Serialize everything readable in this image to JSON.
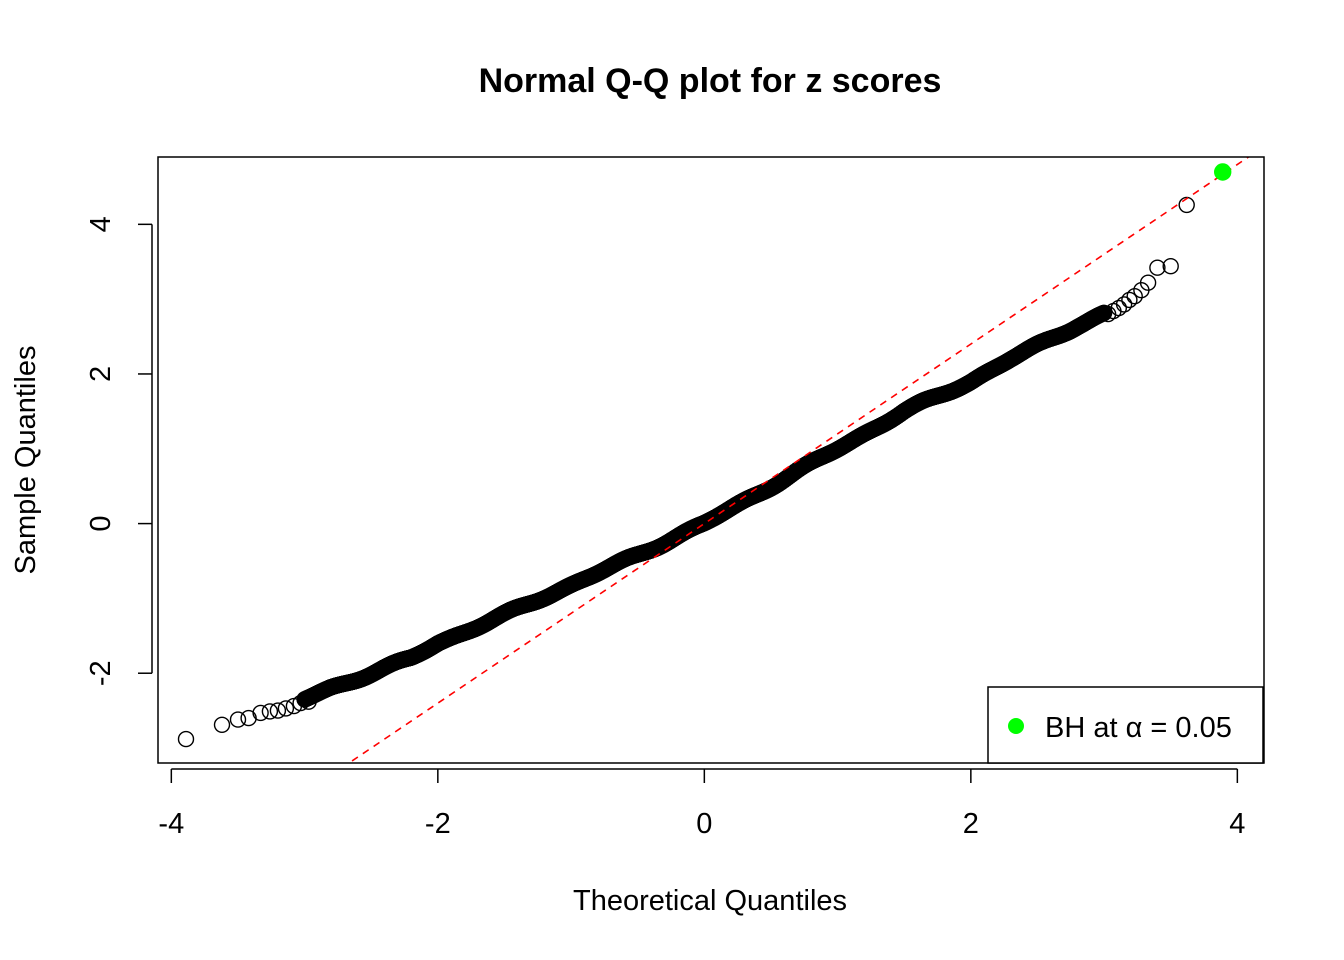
{
  "chart_data": {
    "type": "scatter",
    "title": "Normal Q-Q plot for z scores",
    "xlabel": "Theoretical Quantiles",
    "ylabel": "Sample Quantiles",
    "xlim": [
      -4.1,
      4.2
    ],
    "ylim": [
      -3.2,
      4.9
    ],
    "x_ticks": [
      -4,
      -2,
      0,
      2,
      4
    ],
    "x_tick_labels": [
      "-4",
      "-2",
      "0",
      "2",
      "4"
    ],
    "y_ticks": [
      -2,
      0,
      2,
      4
    ],
    "y_tick_labels": [
      "-2",
      "0",
      "2",
      "4"
    ],
    "grid": false,
    "reference_line": {
      "slope": 1.2,
      "intercept": 0.0,
      "color": "#ff0000",
      "style": "dashed"
    },
    "curve_knots": [
      [
        -3.0,
        -2.35
      ],
      [
        -2.8,
        -2.2
      ],
      [
        -2.5,
        -2.0
      ],
      [
        -2.2,
        -1.8
      ],
      [
        -2.0,
        -1.6
      ],
      [
        -1.5,
        -1.22
      ],
      [
        -1.0,
        -0.82
      ],
      [
        -0.5,
        -0.42
      ],
      [
        0.0,
        0.0
      ],
      [
        0.5,
        0.5
      ],
      [
        1.0,
        1.0
      ],
      [
        1.5,
        1.5
      ],
      [
        2.0,
        1.9
      ],
      [
        2.3,
        2.2
      ],
      [
        2.5,
        2.38
      ],
      [
        2.8,
        2.65
      ],
      [
        3.0,
        2.8
      ]
    ],
    "curve_points_count": 3200,
    "tail_points": [
      [
        -3.89,
        -2.88
      ],
      [
        -3.62,
        -2.69
      ],
      [
        -3.5,
        -2.62
      ],
      [
        -3.42,
        -2.6
      ],
      [
        -3.33,
        -2.53
      ],
      [
        -3.26,
        -2.51
      ],
      [
        -3.2,
        -2.5
      ],
      [
        -3.14,
        -2.47
      ],
      [
        -3.08,
        -2.44
      ],
      [
        -3.03,
        -2.4
      ],
      [
        -2.97,
        -2.38
      ],
      [
        3.03,
        2.8
      ],
      [
        3.07,
        2.84
      ],
      [
        3.11,
        2.88
      ],
      [
        3.15,
        2.93
      ],
      [
        3.19,
        2.99
      ],
      [
        3.23,
        3.04
      ],
      [
        3.28,
        3.12
      ],
      [
        3.33,
        3.22
      ],
      [
        3.4,
        3.42
      ],
      [
        3.5,
        3.44
      ],
      [
        3.62,
        4.26
      ]
    ],
    "series": [
      {
        "name": "BH at α = 0.05",
        "color": "#00ff00",
        "points": [
          [
            3.89,
            4.7
          ]
        ]
      }
    ],
    "legend": {
      "position": "bottom-right",
      "entries": [
        "BH at α = 0.05"
      ]
    },
    "colors": {
      "points": "#000000",
      "highlight": "#00ff00",
      "reference": "#ff0000"
    }
  }
}
